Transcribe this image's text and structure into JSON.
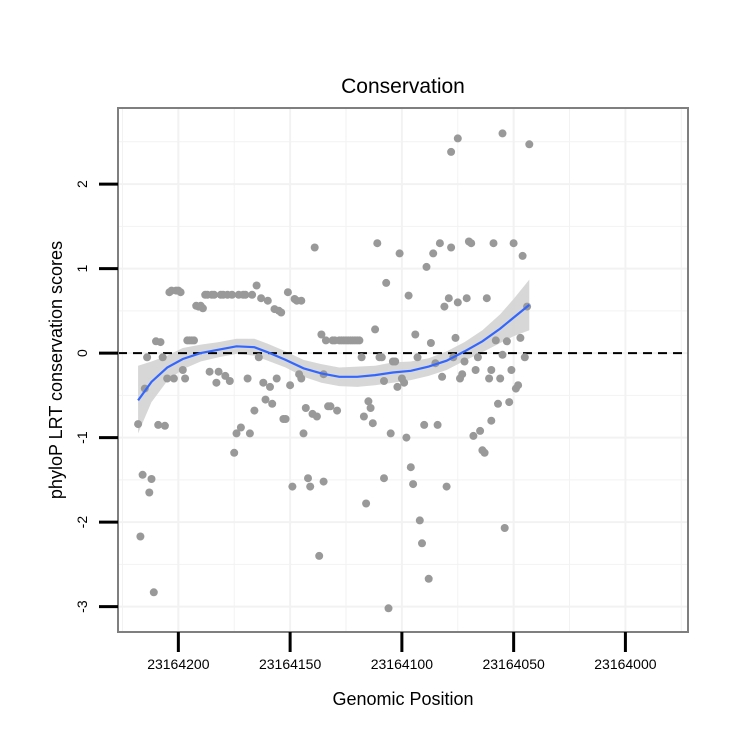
{
  "chart_data": {
    "type": "scatter",
    "title": "Conservation",
    "xlabel": "Genomic Position",
    "ylabel": "phyloP LRT conservation scores",
    "x_reversed": true,
    "xlim": [
      23164227,
      23163972
    ],
    "ylim": [
      -3.3,
      2.9
    ],
    "x_ticks": [
      23164200,
      23164150,
      23164100,
      23164050,
      23164000
    ],
    "x_tick_labels": [
      "23164200",
      "23164150",
      "23164100",
      "23164050",
      "23164000"
    ],
    "y_ticks": [
      -3,
      -2,
      -1,
      0,
      1,
      2
    ],
    "y_tick_labels": [
      "-3",
      "-2",
      "-1",
      "0",
      "1",
      "2"
    ],
    "reference_line": {
      "y": 0,
      "style": "dashed"
    },
    "grid": true,
    "colors": {
      "points": "#999999",
      "smooth_line": "#3366ff",
      "confidence_band": "#d3d3d3",
      "panel_border": "#7f7f7f",
      "grid": "#f2f2f2"
    },
    "points": [
      [
        23164218,
        -0.84
      ],
      [
        23164217,
        -2.17
      ],
      [
        23164216,
        -1.44
      ],
      [
        23164215,
        -0.42
      ],
      [
        23164214,
        -0.05
      ],
      [
        23164213,
        -1.65
      ],
      [
        23164212,
        -1.49
      ],
      [
        23164211,
        -2.83
      ],
      [
        23164210,
        0.14
      ],
      [
        23164209,
        -0.85
      ],
      [
        23164208,
        0.13
      ],
      [
        23164207,
        -0.05
      ],
      [
        23164206,
        -0.86
      ],
      [
        23164205,
        -0.3
      ],
      [
        23164204,
        0.72
      ],
      [
        23164203,
        0.74
      ],
      [
        23164202,
        -0.3
      ],
      [
        23164201,
        0.74
      ],
      [
        23164200,
        0.74
      ],
      [
        23164199,
        0.72
      ],
      [
        23164198,
        -0.2
      ],
      [
        23164197,
        -0.3
      ],
      [
        23164196,
        0.15
      ],
      [
        23164195,
        0.15
      ],
      [
        23164194,
        0.15
      ],
      [
        23164193,
        0.15
      ],
      [
        23164192,
        0.56
      ],
      [
        23164191,
        0.55
      ],
      [
        23164190,
        0.56
      ],
      [
        23164189,
        0.53
      ],
      [
        23164188,
        0.69
      ],
      [
        23164187,
        0.69
      ],
      [
        23164186,
        -0.22
      ],
      [
        23164185,
        0.69
      ],
      [
        23164184,
        0.69
      ],
      [
        23164183,
        -0.35
      ],
      [
        23164182,
        -0.22
      ],
      [
        23164181,
        0.69
      ],
      [
        23164180,
        0.69
      ],
      [
        23164179,
        -0.27
      ],
      [
        23164178,
        0.69
      ],
      [
        23164177,
        -0.33
      ],
      [
        23164176,
        0.69
      ],
      [
        23164175,
        -1.18
      ],
      [
        23164174,
        -0.95
      ],
      [
        23164173,
        0.69
      ],
      [
        23164172,
        -0.88
      ],
      [
        23164171,
        0.69
      ],
      [
        23164170,
        0.69
      ],
      [
        23164169,
        -0.3
      ],
      [
        23164168,
        -0.95
      ],
      [
        23164167,
        0.69
      ],
      [
        23164166,
        -0.68
      ],
      [
        23164165,
        0.8
      ],
      [
        23164164,
        -0.05
      ],
      [
        23164163,
        0.65
      ],
      [
        23164162,
        -0.35
      ],
      [
        23164161,
        -0.55
      ],
      [
        23164160,
        0.62
      ],
      [
        23164159,
        -0.4
      ],
      [
        23164158,
        -0.6
      ],
      [
        23164157,
        0.52
      ],
      [
        23164156,
        -0.3
      ],
      [
        23164155,
        0.5
      ],
      [
        23164154,
        0.48
      ],
      [
        23164153,
        -0.78
      ],
      [
        23164152,
        -0.78
      ],
      [
        23164151,
        0.72
      ],
      [
        23164150,
        -0.38
      ],
      [
        23164149,
        -1.58
      ],
      [
        23164148,
        0.64
      ],
      [
        23164147,
        0.62
      ],
      [
        23164146,
        -0.25
      ],
      [
        23164145,
        0.62
      ],
      [
        23164144,
        -0.95
      ],
      [
        23164143,
        -0.65
      ],
      [
        23164142,
        -1.48
      ],
      [
        23164141,
        -1.58
      ],
      [
        23164140,
        -0.72
      ],
      [
        23164139,
        1.25
      ],
      [
        23164138,
        -0.75
      ],
      [
        23164137,
        -2.4
      ],
      [
        23164136,
        0.22
      ],
      [
        23164135,
        -1.52
      ],
      [
        23164134,
        0.15
      ],
      [
        23164133,
        -0.63
      ],
      [
        23164132,
        -0.63
      ],
      [
        23164131,
        0.15
      ],
      [
        23164130,
        0.15
      ],
      [
        23164129,
        -0.68
      ],
      [
        23164128,
        0.15
      ],
      [
        23164127,
        0.15
      ],
      [
        23164126,
        0.15
      ],
      [
        23164125,
        0.15
      ],
      [
        23164124,
        0.15
      ],
      [
        23164123,
        0.15
      ],
      [
        23164122,
        0.15
      ],
      [
        23164121,
        0.15
      ],
      [
        23164120,
        0.15
      ],
      [
        23164119,
        0.15
      ],
      [
        23164118,
        -0.05
      ],
      [
        23164117,
        -0.75
      ],
      [
        23164116,
        -1.78
      ],
      [
        23164115,
        -0.57
      ],
      [
        23164114,
        -0.65
      ],
      [
        23164113,
        -0.83
      ],
      [
        23164112,
        0.28
      ],
      [
        23164111,
        1.3
      ],
      [
        23164110,
        -0.05
      ],
      [
        23164109,
        -0.05
      ],
      [
        23164108,
        -1.48
      ],
      [
        23164107,
        0.83
      ],
      [
        23164106,
        -3.02
      ],
      [
        23164105,
        -0.95
      ],
      [
        23164104,
        -0.1
      ],
      [
        23164103,
        -0.1
      ],
      [
        23164102,
        -0.4
      ],
      [
        23164101,
        1.18
      ],
      [
        23164100,
        -0.3
      ],
      [
        23164099,
        -0.35
      ],
      [
        23164098,
        -1.0
      ],
      [
        23164097,
        0.68
      ],
      [
        23164096,
        -1.35
      ],
      [
        23164095,
        -1.55
      ],
      [
        23164094,
        0.22
      ],
      [
        23164093,
        -0.05
      ],
      [
        23164092,
        -1.98
      ],
      [
        23164091,
        -2.25
      ],
      [
        23164090,
        -0.85
      ],
      [
        23164089,
        1.02
      ],
      [
        23164088,
        -2.67
      ],
      [
        23164087,
        0.12
      ],
      [
        23164086,
        1.18
      ],
      [
        23164085,
        -0.12
      ],
      [
        23164084,
        -0.85
      ],
      [
        23164083,
        1.3
      ],
      [
        23164082,
        -0.28
      ],
      [
        23164081,
        0.55
      ],
      [
        23164080,
        -1.58
      ],
      [
        23164079,
        0.65
      ],
      [
        23164078,
        1.25
      ],
      [
        23164077,
        -0.05
      ],
      [
        23164076,
        0.18
      ],
      [
        23164075,
        2.54
      ],
      [
        23164074,
        -0.3
      ],
      [
        23164073,
        -0.25
      ],
      [
        23164072,
        -0.1
      ],
      [
        23164071,
        0.65
      ],
      [
        23164070,
        1.32
      ],
      [
        23164069,
        1.3
      ],
      [
        23164068,
        -0.98
      ],
      [
        23164067,
        -0.2
      ],
      [
        23164066,
        -0.05
      ],
      [
        23164065,
        -0.92
      ],
      [
        23164064,
        -1.15
      ],
      [
        23164063,
        -1.18
      ],
      [
        23164062,
        0.65
      ],
      [
        23164061,
        -0.3
      ],
      [
        23164060,
        -0.2
      ],
      [
        23164059,
        1.3
      ],
      [
        23164058,
        0.15
      ],
      [
        23164057,
        -0.6
      ],
      [
        23164056,
        -0.3
      ],
      [
        23164055,
        2.6
      ],
      [
        23164054,
        -2.07
      ],
      [
        23164053,
        0.14
      ],
      [
        23164052,
        -0.58
      ],
      [
        23164051,
        -0.2
      ],
      [
        23164050,
        1.3
      ],
      [
        23164049,
        -0.42
      ],
      [
        23164048,
        -0.38
      ],
      [
        23164047,
        0.18
      ],
      [
        23164046,
        1.15
      ],
      [
        23164045,
        -0.05
      ],
      [
        23164044,
        0.55
      ],
      [
        23164043,
        2.47
      ],
      [
        23164060,
        -0.8
      ],
      [
        23164075,
        0.6
      ],
      [
        23164055,
        -0.02
      ],
      [
        23164108,
        -0.33
      ],
      [
        23164135,
        -0.25
      ],
      [
        23164145,
        -0.3
      ],
      [
        23164078,
        2.38
      ]
    ],
    "smooth_line": {
      "x": [
        23164218,
        23164212,
        23164205,
        23164198,
        23164190,
        23164182,
        23164174,
        23164166,
        23164160,
        23164152,
        23164144,
        23164136,
        23164128,
        23164120,
        23164112,
        23164104,
        23164096,
        23164088,
        23164080,
        23164072,
        23164064,
        23164056,
        23164050,
        23164043
      ],
      "y": [
        -0.56,
        -0.34,
        -0.17,
        -0.07,
        0.0,
        0.04,
        0.08,
        0.07,
        0.01,
        -0.08,
        -0.18,
        -0.24,
        -0.28,
        -0.28,
        -0.26,
        -0.23,
        -0.21,
        -0.16,
        -0.09,
        0.02,
        0.14,
        0.29,
        0.42,
        0.57
      ],
      "band_low": [
        -0.95,
        -0.58,
        -0.33,
        -0.19,
        -0.1,
        -0.05,
        -0.01,
        -0.03,
        -0.09,
        -0.17,
        -0.28,
        -0.35,
        -0.39,
        -0.4,
        -0.38,
        -0.35,
        -0.32,
        -0.27,
        -0.2,
        -0.09,
        0.01,
        0.12,
        0.2,
        0.27
      ],
      "band_high": [
        -0.15,
        -0.1,
        -0.03,
        0.06,
        0.1,
        0.13,
        0.17,
        0.17,
        0.11,
        0.02,
        -0.08,
        -0.13,
        -0.17,
        -0.16,
        -0.15,
        -0.11,
        -0.1,
        -0.06,
        0.02,
        0.13,
        0.27,
        0.46,
        0.64,
        0.87
      ]
    }
  }
}
